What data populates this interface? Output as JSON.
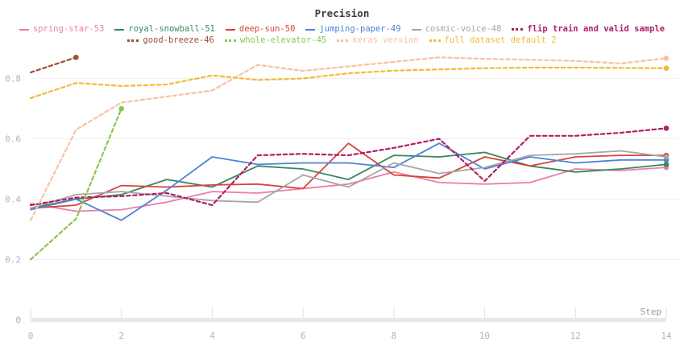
{
  "header": {
    "title": "Precision"
  },
  "axes": {
    "x_label": "Step",
    "x_ticks": [
      0,
      2,
      4,
      6,
      8,
      10,
      12,
      14
    ],
    "y_ticks": [
      {
        "value": 0.8,
        "label": "0.8"
      },
      {
        "value": 0.6,
        "label": "0.6"
      },
      {
        "value": 0.4,
        "label": "0.4"
      },
      {
        "value": 0.2,
        "label": "0.2"
      },
      {
        "value": 0,
        "label": "0"
      }
    ]
  },
  "chart_data": {
    "type": "line",
    "title": "Precision",
    "xlabel": "Step",
    "ylabel": "",
    "xlim": [
      0,
      14
    ],
    "ylim": [
      0,
      0.9
    ],
    "grid": "horizontal",
    "legend_position": "top",
    "series": [
      {
        "name": "spring-star-53",
        "color": "#ea7fa8",
        "style": "solid",
        "bold": false,
        "x": [
          0,
          1,
          2,
          3,
          4,
          5,
          6,
          7,
          8,
          9,
          10,
          11,
          12,
          13,
          14
        ],
        "values": [
          0.385,
          0.36,
          0.365,
          0.39,
          0.425,
          0.42,
          0.435,
          0.45,
          0.49,
          0.455,
          0.45,
          0.455,
          0.5,
          0.495,
          0.505
        ]
      },
      {
        "name": "royal-snowball-51",
        "color": "#35895a",
        "style": "solid",
        "bold": false,
        "x": [
          0,
          1,
          2,
          3,
          4,
          5,
          6,
          7,
          8,
          9,
          10,
          11,
          12,
          13,
          14
        ],
        "values": [
          0.37,
          0.4,
          0.415,
          0.465,
          0.44,
          0.51,
          0.5,
          0.465,
          0.545,
          0.54,
          0.555,
          0.51,
          0.49,
          0.5,
          0.515
        ]
      },
      {
        "name": "deep-sun-50",
        "color": "#d8433d",
        "style": "solid",
        "bold": false,
        "x": [
          0,
          1,
          2,
          3,
          4,
          5,
          6,
          7,
          8,
          9,
          10,
          11,
          12,
          13,
          14
        ],
        "values": [
          0.37,
          0.38,
          0.445,
          0.44,
          0.447,
          0.45,
          0.435,
          0.585,
          0.48,
          0.47,
          0.54,
          0.51,
          0.54,
          0.545,
          0.545
        ]
      },
      {
        "name": "jumping-paper-49",
        "color": "#4d82d6",
        "style": "solid",
        "bold": false,
        "x": [
          0,
          1,
          2,
          3,
          4,
          5,
          6,
          7,
          8,
          9,
          10,
          11,
          12,
          13,
          14
        ],
        "values": [
          0.365,
          0.4,
          0.33,
          0.43,
          0.54,
          0.515,
          0.52,
          0.52,
          0.505,
          0.585,
          0.5,
          0.54,
          0.52,
          0.53,
          0.53
        ]
      },
      {
        "name": "cosmic-voice-48",
        "color": "#a6a6a6",
        "style": "solid",
        "bold": false,
        "x": [
          0,
          1,
          2,
          3,
          4,
          5,
          6,
          7,
          8,
          9,
          10,
          11,
          12,
          13,
          14
        ],
        "values": [
          0.37,
          0.415,
          0.425,
          0.41,
          0.395,
          0.39,
          0.48,
          0.44,
          0.52,
          0.485,
          0.505,
          0.545,
          0.55,
          0.56,
          0.54
        ]
      },
      {
        "name": "flip train and valid sample",
        "color": "#b01f66",
        "style": "dashed",
        "bold": true,
        "x": [
          0,
          1,
          2,
          3,
          4,
          5,
          6,
          7,
          8,
          9,
          10,
          11,
          12,
          13,
          14
        ],
        "values": [
          0.38,
          0.405,
          0.41,
          0.42,
          0.38,
          0.545,
          0.55,
          0.545,
          0.57,
          0.6,
          0.46,
          0.61,
          0.61,
          0.62,
          0.635
        ]
      },
      {
        "name": "good-breeze-46",
        "color": "#9e4f38",
        "style": "dashed",
        "bold": false,
        "x": [
          0,
          1
        ],
        "values": [
          0.82,
          0.87
        ]
      },
      {
        "name": "whole-elevator-45",
        "color": "#8dc452",
        "style": "dashed",
        "bold": false,
        "x": [
          0,
          1,
          2
        ],
        "values": [
          0.2,
          0.335,
          0.7
        ]
      },
      {
        "name": "keras version",
        "color": "#f6c2a4",
        "style": "dashed",
        "bold": false,
        "x": [
          0,
          1,
          2,
          3,
          4,
          5,
          6,
          7,
          8,
          9,
          10,
          11,
          12,
          13,
          14
        ],
        "values": [
          0.33,
          0.63,
          0.72,
          0.74,
          0.76,
          0.845,
          0.825,
          0.84,
          0.855,
          0.87,
          0.865,
          0.862,
          0.858,
          0.85,
          0.867
        ]
      },
      {
        "name": "full dataset default 2",
        "color": "#f4ba36",
        "style": "dashed",
        "bold": false,
        "x": [
          0,
          1,
          2,
          3,
          4,
          5,
          6,
          7,
          8,
          9,
          10,
          11,
          12,
          13,
          14
        ],
        "values": [
          0.735,
          0.785,
          0.775,
          0.78,
          0.81,
          0.795,
          0.8,
          0.817,
          0.826,
          0.83,
          0.834,
          0.836,
          0.836,
          0.835,
          0.834
        ]
      }
    ]
  }
}
